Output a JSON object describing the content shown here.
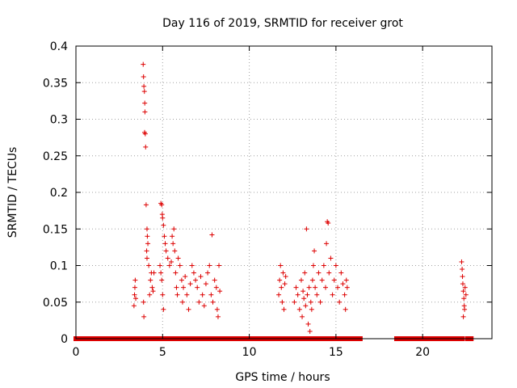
{
  "chart_data": {
    "type": "scatter",
    "title": "Day 116 of 2019, SRMTID for receiver grot",
    "xlabel": "GPS time / hours",
    "ylabel": "SRMTID / TECUs",
    "xlim": [
      0,
      24
    ],
    "ylim": [
      0,
      0.4
    ],
    "x_ticks": [
      0,
      5,
      10,
      15,
      20
    ],
    "y_ticks": [
      0,
      0.05,
      0.1,
      0.15,
      0.2,
      0.25,
      0.3,
      0.35,
      0.4
    ],
    "x_tick_labels": [
      "0",
      "5",
      "10",
      "15",
      "20"
    ],
    "y_tick_labels": [
      "0",
      "0.05",
      "0.1",
      "0.15",
      "0.2",
      "0.25",
      "0.3",
      "0.35",
      "0.4"
    ],
    "grid": true,
    "marker": "plus",
    "marker_color": "#dd0000",
    "zero_band_segments": [
      [
        0.0,
        3.4
      ],
      [
        3.5,
        8.4
      ],
      [
        8.5,
        16.4
      ],
      [
        18.5,
        22.3
      ],
      [
        22.6,
        22.8
      ]
    ],
    "series": [
      {
        "points": [
          [
            3.35,
            0.045
          ],
          [
            3.38,
            0.06
          ],
          [
            3.4,
            0.07
          ],
          [
            3.42,
            0.08
          ],
          [
            3.45,
            0.055
          ],
          [
            3.88,
            0.375
          ],
          [
            3.9,
            0.358
          ],
          [
            3.92,
            0.345
          ],
          [
            3.95,
            0.338
          ],
          [
            3.97,
            0.322
          ],
          [
            3.98,
            0.31
          ],
          [
            3.96,
            0.282
          ],
          [
            4.0,
            0.28
          ],
          [
            4.02,
            0.262
          ],
          [
            4.05,
            0.183
          ],
          [
            4.1,
            0.15
          ],
          [
            4.12,
            0.14
          ],
          [
            4.15,
            0.13
          ],
          [
            4.08,
            0.12
          ],
          [
            4.1,
            0.11
          ],
          [
            4.2,
            0.1
          ],
          [
            3.9,
            0.05
          ],
          [
            3.92,
            0.03
          ],
          [
            4.25,
            0.06
          ],
          [
            4.3,
            0.08
          ],
          [
            4.35,
            0.09
          ],
          [
            4.4,
            0.07
          ],
          [
            4.45,
            0.065
          ],
          [
            4.5,
            0.09
          ],
          [
            4.9,
            0.185
          ],
          [
            4.95,
            0.183
          ],
          [
            4.98,
            0.17
          ],
          [
            5.0,
            0.165
          ],
          [
            5.05,
            0.155
          ],
          [
            5.1,
            0.14
          ],
          [
            5.15,
            0.13
          ],
          [
            5.2,
            0.12
          ],
          [
            4.85,
            0.1
          ],
          [
            4.9,
            0.09
          ],
          [
            4.95,
            0.08
          ],
          [
            5.0,
            0.06
          ],
          [
            5.05,
            0.04
          ],
          [
            5.3,
            0.11
          ],
          [
            5.4,
            0.1
          ],
          [
            5.5,
            0.105
          ],
          [
            5.55,
            0.14
          ],
          [
            5.6,
            0.13
          ],
          [
            5.65,
            0.15
          ],
          [
            5.7,
            0.12
          ],
          [
            5.75,
            0.09
          ],
          [
            5.8,
            0.07
          ],
          [
            5.85,
            0.06
          ],
          [
            5.9,
            0.11
          ],
          [
            6.0,
            0.1
          ],
          [
            6.1,
            0.08
          ],
          [
            6.15,
            0.05
          ],
          [
            6.2,
            0.07
          ],
          [
            6.3,
            0.085
          ],
          [
            6.4,
            0.06
          ],
          [
            6.5,
            0.04
          ],
          [
            6.6,
            0.075
          ],
          [
            6.7,
            0.1
          ],
          [
            6.8,
            0.09
          ],
          [
            6.9,
            0.08
          ],
          [
            7.0,
            0.07
          ],
          [
            7.1,
            0.05
          ],
          [
            7.2,
            0.085
          ],
          [
            7.3,
            0.06
          ],
          [
            7.4,
            0.045
          ],
          [
            7.5,
            0.075
          ],
          [
            7.6,
            0.09
          ],
          [
            7.7,
            0.1
          ],
          [
            7.8,
            0.06
          ],
          [
            7.85,
            0.142
          ],
          [
            7.9,
            0.05
          ],
          [
            8.0,
            0.08
          ],
          [
            8.1,
            0.07
          ],
          [
            8.15,
            0.04
          ],
          [
            8.2,
            0.03
          ],
          [
            8.25,
            0.1
          ],
          [
            8.3,
            0.065
          ],
          [
            11.7,
            0.06
          ],
          [
            11.75,
            0.08
          ],
          [
            11.8,
            0.1
          ],
          [
            11.85,
            0.07
          ],
          [
            11.9,
            0.05
          ],
          [
            11.95,
            0.09
          ],
          [
            12.0,
            0.04
          ],
          [
            12.05,
            0.075
          ],
          [
            12.1,
            0.085
          ],
          [
            12.6,
            0.05
          ],
          [
            12.7,
            0.07
          ],
          [
            12.8,
            0.06
          ],
          [
            12.9,
            0.04
          ],
          [
            13.0,
            0.08
          ],
          [
            13.05,
            0.03
          ],
          [
            13.1,
            0.065
          ],
          [
            13.15,
            0.055
          ],
          [
            13.2,
            0.09
          ],
          [
            13.25,
            0.045
          ],
          [
            13.3,
            0.15
          ],
          [
            13.35,
            0.06
          ],
          [
            13.4,
            0.02
          ],
          [
            13.45,
            0.07
          ],
          [
            13.5,
            0.01
          ],
          [
            13.55,
            0.05
          ],
          [
            13.6,
            0.04
          ],
          [
            13.65,
            0.08
          ],
          [
            13.7,
            0.1
          ],
          [
            13.75,
            0.12
          ],
          [
            13.8,
            0.07
          ],
          [
            13.9,
            0.06
          ],
          [
            14.0,
            0.09
          ],
          [
            14.1,
            0.05
          ],
          [
            14.2,
            0.08
          ],
          [
            14.3,
            0.1
          ],
          [
            14.4,
            0.07
          ],
          [
            14.45,
            0.13
          ],
          [
            14.5,
            0.16
          ],
          [
            14.55,
            0.158
          ],
          [
            14.6,
            0.09
          ],
          [
            14.7,
            0.11
          ],
          [
            14.8,
            0.06
          ],
          [
            14.9,
            0.08
          ],
          [
            15.0,
            0.1
          ],
          [
            15.1,
            0.07
          ],
          [
            15.2,
            0.05
          ],
          [
            15.3,
            0.09
          ],
          [
            15.4,
            0.075
          ],
          [
            15.5,
            0.06
          ],
          [
            15.55,
            0.04
          ],
          [
            15.6,
            0.08
          ],
          [
            15.65,
            0.07
          ],
          [
            22.25,
            0.105
          ],
          [
            22.28,
            0.095
          ],
          [
            22.3,
            0.085
          ],
          [
            22.32,
            0.075
          ],
          [
            22.35,
            0.065
          ],
          [
            22.38,
            0.055
          ],
          [
            22.4,
            0.045
          ],
          [
            22.42,
            0.04
          ],
          [
            22.35,
            0.03
          ],
          [
            22.45,
            0.07
          ],
          [
            22.5,
            0.06
          ]
        ]
      }
    ]
  }
}
